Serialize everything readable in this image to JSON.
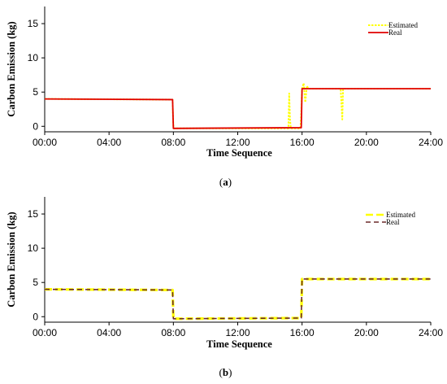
{
  "chart_data": [
    {
      "type": "line",
      "caption_prefix": "(",
      "caption_letter": "a",
      "caption_suffix": ")",
      "xlabel": "Time Sequence",
      "ylabel": "Carbon Emission (kg)",
      "xlim": [
        0,
        24
      ],
      "ylim": [
        -0.8,
        17.5
      ],
      "xticks": [
        0,
        4,
        8,
        12,
        16,
        20,
        24
      ],
      "xtick_labels": [
        "00:00",
        "04:00",
        "08:00",
        "12:00",
        "16:00",
        "20:00",
        "24:00"
      ],
      "yticks": [
        0,
        5,
        10,
        15
      ],
      "ytick_labels": [
        "0",
        "5",
        "10",
        "15"
      ],
      "grid": false,
      "legend_position": "top-right",
      "series": [
        {
          "name": "Estimated",
          "color": "#ffff00",
          "style": "dotted",
          "x": [
            0,
            7.95,
            7.97,
            7.99,
            8.01,
            15.15,
            15.2,
            15.25,
            15.3,
            15.35,
            15.9,
            15.95,
            16.0,
            16.1,
            16.2,
            16.3,
            16.4,
            18.4,
            18.5,
            18.55,
            18.6,
            24
          ],
          "y": [
            4.0,
            3.9,
            2.0,
            0.5,
            -0.3,
            -0.3,
            4.8,
            1.0,
            -0.3,
            -0.3,
            -0.3,
            2.0,
            5.5,
            6.3,
            3.5,
            5.9,
            5.5,
            5.5,
            1.0,
            5.5,
            5.5,
            5.5
          ]
        },
        {
          "name": "Real",
          "color": "#e00000",
          "style": "solid",
          "x": [
            0,
            7.95,
            8.0,
            15.95,
            16.0,
            24
          ],
          "y": [
            4.0,
            3.9,
            -0.3,
            -0.2,
            5.5,
            5.5
          ]
        }
      ]
    },
    {
      "type": "line",
      "caption_prefix": "(",
      "caption_letter": "b",
      "caption_suffix": ")",
      "xlabel": "Time Sequence",
      "ylabel": "Carbon Emission (kg)",
      "xlim": [
        0,
        24
      ],
      "ylim": [
        -0.8,
        17.5
      ],
      "xticks": [
        0,
        4,
        8,
        12,
        16,
        20,
        24
      ],
      "xtick_labels": [
        "00:00",
        "04:00",
        "08:00",
        "12:00",
        "16:00",
        "20:00",
        "24:00"
      ],
      "yticks": [
        0,
        5,
        10,
        15
      ],
      "ytick_labels": [
        "0",
        "5",
        "10",
        "15"
      ],
      "grid": false,
      "legend_position": "top-right",
      "series": [
        {
          "name": "Estimated",
          "color": "#ffff00",
          "style": "solid-thick",
          "x": [
            0,
            7.95,
            8.0,
            15.95,
            16.0,
            24
          ],
          "y": [
            4.0,
            3.9,
            -0.3,
            -0.2,
            5.5,
            5.5
          ]
        },
        {
          "name": "Real",
          "color": "#6b2a2a",
          "style": "dashed",
          "x": [
            0,
            7.95,
            8.0,
            15.95,
            16.0,
            24
          ],
          "y": [
            4.0,
            3.9,
            -0.3,
            -0.2,
            5.5,
            5.5
          ]
        }
      ]
    }
  ]
}
